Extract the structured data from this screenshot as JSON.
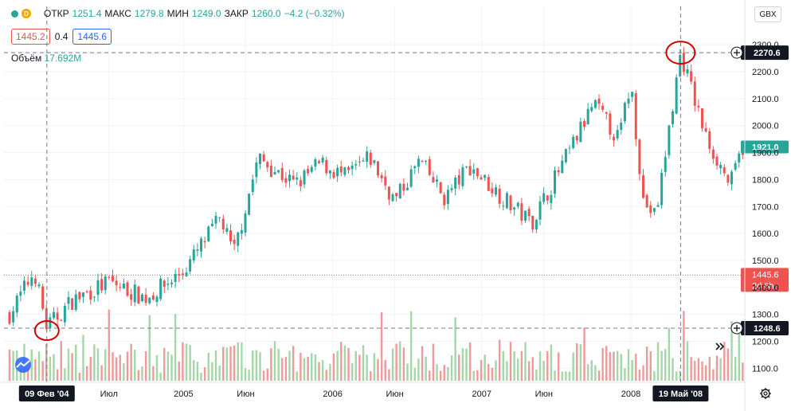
{
  "legend": {
    "open_label": "ОТКР",
    "open_value": "1251.4",
    "high_label": "МАКС",
    "high_value": "1279.8",
    "low_label": "МИН",
    "low_value": "1249.0",
    "close_label": "ЗАКР",
    "close_value": "1260.0",
    "change": "−4.2 (−0.32%)",
    "badge_letter": "D",
    "bid": "1445.2",
    "spread": "0.4",
    "ask": "1445.6",
    "volume_label": "Объём",
    "volume_value": "17.692M"
  },
  "currency_button": "GBX",
  "price_axis": {
    "ticks": [
      "2300.0",
      "2200.0",
      "2100.0",
      "2000.0",
      "1900.0",
      "1800.0",
      "1700.0",
      "1600.0",
      "1500.0",
      "1400.0",
      "1300.0",
      "1200.0",
      "1100.0"
    ],
    "crosshair_high_label": "2270.6",
    "crosshair_low_label": "1248.6",
    "last_close_label": "1921.0",
    "current_price_label": "1445.6",
    "countdown_label": "2d 6h"
  },
  "time_axis": {
    "ticks": [
      "Июл",
      "2005",
      "Июн",
      "2006",
      "Июн",
      "2007",
      "Июн",
      "2008"
    ],
    "crosshair_left_date": "09 Фев '04",
    "crosshair_right_date": "19 Май '08"
  },
  "colors": {
    "up": "#26a69a",
    "down": "#ef5350",
    "up_volume": "#a5d6a7",
    "down_volume": "#ef9a9a",
    "current_price": "#ef5350",
    "last_close": "#26a69a",
    "annotation_circle": "#d50000"
  },
  "icons": [
    "tradingview-logo-icon",
    "settings-gear-icon",
    "scroll-to-realtime-icon",
    "add-alert-plus-icon"
  ],
  "chart_data": {
    "type": "candlestick",
    "x_range": [
      "2003-11",
      "2008-11"
    ],
    "ylim": [
      1080,
      2330
    ],
    "y_scale": "linear",
    "grid": true,
    "price_anchors": [
      {
        "date": "2003-11",
        "close": 1300
      },
      {
        "date": "2004-01",
        "close": 1460
      },
      {
        "date": "2004-02",
        "close": 1250
      },
      {
        "date": "2004-04",
        "close": 1350
      },
      {
        "date": "2004-07",
        "close": 1420
      },
      {
        "date": "2004-10",
        "close": 1360
      },
      {
        "date": "2005-01",
        "close": 1460
      },
      {
        "date": "2005-04",
        "close": 1660
      },
      {
        "date": "2005-05",
        "close": 1520
      },
      {
        "date": "2005-07",
        "close": 1880
      },
      {
        "date": "2005-10",
        "close": 1780
      },
      {
        "date": "2005-12",
        "close": 1860
      },
      {
        "date": "2006-02",
        "close": 1810
      },
      {
        "date": "2006-04",
        "close": 1880
      },
      {
        "date": "2006-06",
        "close": 1720
      },
      {
        "date": "2006-08",
        "close": 1870
      },
      {
        "date": "2006-10",
        "close": 1730
      },
      {
        "date": "2006-12",
        "close": 1850
      },
      {
        "date": "2007-03",
        "close": 1720
      },
      {
        "date": "2007-05",
        "close": 1640
      },
      {
        "date": "2007-08",
        "close": 1900
      },
      {
        "date": "2007-10",
        "close": 2080
      },
      {
        "date": "2007-12",
        "close": 1950
      },
      {
        "date": "2008-01",
        "close": 2160
      },
      {
        "date": "2008-02",
        "close": 1720
      },
      {
        "date": "2008-03",
        "close": 1660
      },
      {
        "date": "2008-05",
        "close": 2270
      },
      {
        "date": "2008-07",
        "close": 1960
      },
      {
        "date": "2008-09",
        "close": 1780
      },
      {
        "date": "2008-10",
        "close": 1921
      }
    ],
    "annotations": {
      "crosshair_high": 2270.6,
      "crosshair_low": 1248.6,
      "current_price": 1445.6,
      "last_close": 1921.0
    }
  }
}
